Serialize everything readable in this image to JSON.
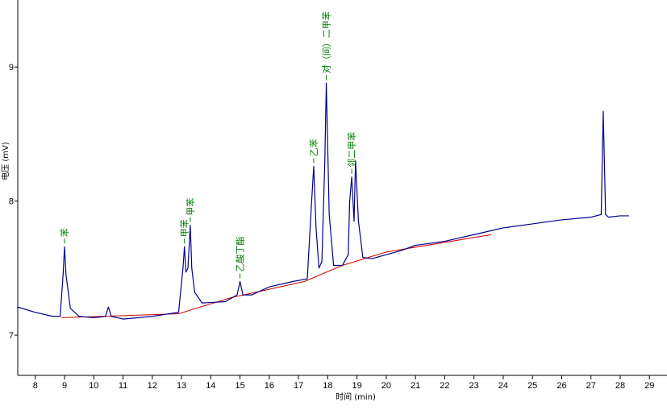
{
  "chart_data": {
    "type": "line",
    "title": "",
    "xlabel": "时间 (min)",
    "ylabel": "电压 (mV)",
    "xlim": [
      7.4,
      29.6
    ],
    "ylim": [
      6.7,
      9.5
    ],
    "x_ticks": [
      8,
      9,
      10,
      11,
      12,
      13,
      14,
      15,
      16,
      17,
      18,
      19,
      20,
      21,
      22,
      23,
      24,
      25,
      26,
      27,
      28,
      29
    ],
    "y_ticks": [
      7,
      8,
      9
    ],
    "grid": false,
    "colors": {
      "signal": "#00008b",
      "baseline": "#cc0000",
      "labels": "#007a00"
    },
    "baseline": {
      "x": [
        8.9,
        12.9,
        14.7,
        17.2,
        18.5,
        20.0,
        23.6
      ],
      "y": [
        7.13,
        7.16,
        7.28,
        7.4,
        7.52,
        7.62,
        7.75
      ]
    },
    "series": [
      {
        "values_x": [
          7.4,
          8.0,
          8.6,
          8.85,
          8.95,
          9.0,
          9.05,
          9.2,
          9.5,
          10.0,
          10.4,
          10.5,
          10.6,
          11.0,
          12.0,
          12.9,
          13.05,
          13.1,
          13.15,
          13.22,
          13.3,
          13.35,
          13.45,
          13.7,
          14.5,
          14.9,
          15.0,
          15.1,
          15.4,
          16.0,
          16.8,
          17.3,
          17.45,
          17.52,
          17.6,
          17.7,
          17.8,
          17.9,
          17.95,
          18.05,
          18.2,
          18.5,
          18.7,
          18.75,
          18.82,
          18.9,
          18.95,
          19.05,
          19.2,
          19.5,
          20.0,
          20.5,
          21.0,
          22.0,
          23.0,
          23.6,
          24.0,
          25.0,
          26.0,
          27.0,
          27.35,
          27.42,
          27.5,
          27.6,
          28.0,
          28.3
        ],
        "values_y": [
          7.21,
          7.17,
          7.14,
          7.14,
          7.45,
          7.66,
          7.45,
          7.2,
          7.14,
          7.13,
          7.14,
          7.21,
          7.14,
          7.12,
          7.14,
          7.17,
          7.5,
          7.66,
          7.47,
          7.5,
          7.82,
          7.5,
          7.32,
          7.24,
          7.25,
          7.3,
          7.4,
          7.3,
          7.3,
          7.36,
          7.4,
          7.42,
          8.0,
          8.26,
          7.8,
          7.5,
          7.55,
          8.3,
          8.88,
          7.9,
          7.52,
          7.52,
          7.6,
          8.0,
          8.18,
          7.85,
          8.3,
          7.85,
          7.58,
          7.57,
          7.6,
          7.63,
          7.67,
          7.7,
          7.75,
          7.78,
          7.8,
          7.83,
          7.86,
          7.88,
          7.9,
          8.67,
          7.9,
          7.88,
          7.89,
          7.89
        ]
      }
    ],
    "peaks": [
      {
        "label": "苯",
        "x": 9.0,
        "y": 7.66
      },
      {
        "label": "甲苯",
        "x": 13.1,
        "y": 7.66
      },
      {
        "label": "甲苯",
        "x": 13.3,
        "y": 7.82
      },
      {
        "label": "乙酸丁酯",
        "x": 15.0,
        "y": 7.4
      },
      {
        "label": "乙苯",
        "x": 17.52,
        "y": 8.26
      },
      {
        "label": "对（间）二甲苯",
        "x": 17.95,
        "y": 8.88
      },
      {
        "label": "邻二甲苯",
        "x": 18.82,
        "y": 8.18
      }
    ]
  }
}
